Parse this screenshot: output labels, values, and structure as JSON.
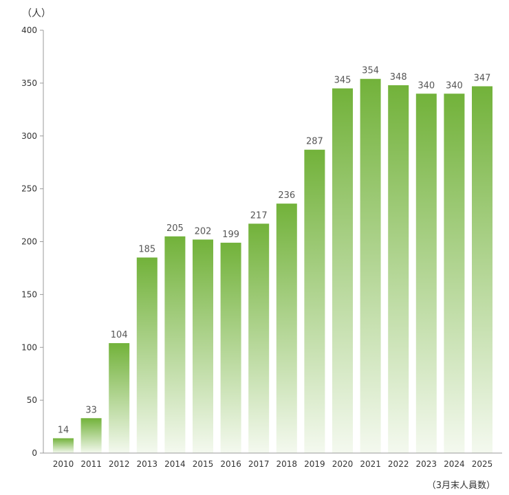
{
  "chart_data": {
    "type": "bar",
    "ylabel": "（人）",
    "note": "（3月末人員数）",
    "categories": [
      "2010",
      "2011",
      "2012",
      "2013",
      "2014",
      "2015",
      "2016",
      "2017",
      "2018",
      "2019",
      "2020",
      "2021",
      "2022",
      "2023",
      "2024",
      "2025"
    ],
    "values": [
      14,
      33,
      104,
      185,
      205,
      202,
      199,
      217,
      236,
      287,
      345,
      354,
      348,
      340,
      340,
      347
    ],
    "ylim": [
      0,
      400
    ],
    "yticks": [
      0,
      50,
      100,
      150,
      200,
      250,
      300,
      350,
      400
    ],
    "grid": false,
    "bar_color_top": "#72b23a",
    "bar_color_bottom": "#f4f9ef"
  }
}
